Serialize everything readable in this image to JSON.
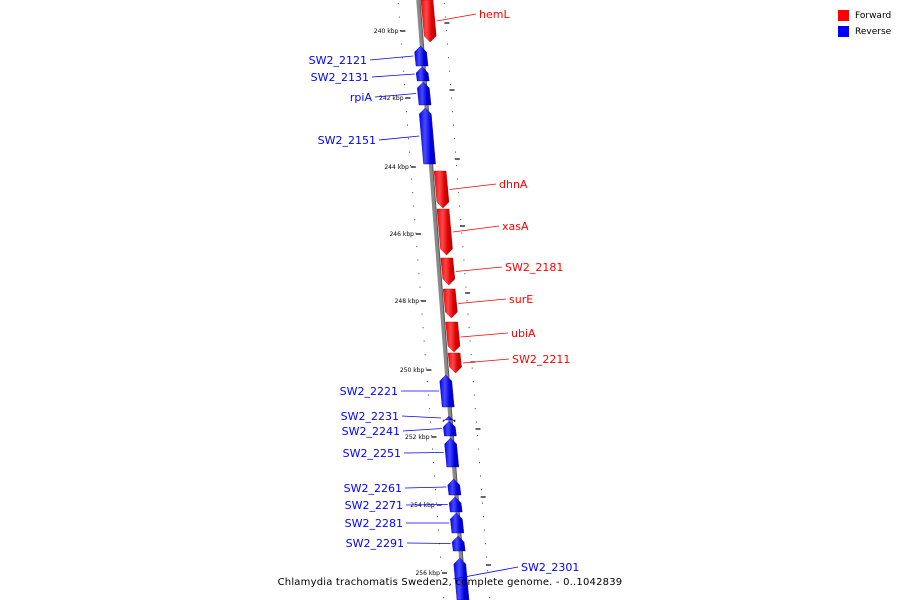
{
  "legend": {
    "forward": {
      "label": "Forward",
      "color": "#ff0000"
    },
    "reverse": {
      "label": "Reverse",
      "color": "#0000ff"
    }
  },
  "caption": "Chlamydia trachomatis Sweden2, complete genome. - 0..1042839",
  "ticks": [
    {
      "label": "240 kbp"
    },
    {
      "label": "242 kbp"
    },
    {
      "label": "244 kbp"
    },
    {
      "label": "246 kbp"
    },
    {
      "label": "248 kbp"
    },
    {
      "label": "250 kbp"
    },
    {
      "label": "252 kbp"
    },
    {
      "label": "254 kbp"
    },
    {
      "label": "256 kbp"
    }
  ],
  "genes": [
    {
      "name": "hemL",
      "strand": "forward"
    },
    {
      "name": "SW2_2121",
      "strand": "reverse"
    },
    {
      "name": "SW2_2131",
      "strand": "reverse"
    },
    {
      "name": "rpiA",
      "strand": "reverse"
    },
    {
      "name": "SW2_2151",
      "strand": "reverse"
    },
    {
      "name": "dhnA",
      "strand": "forward"
    },
    {
      "name": "xasA",
      "strand": "forward"
    },
    {
      "name": "SW2_2181",
      "strand": "forward"
    },
    {
      "name": "surE",
      "strand": "forward"
    },
    {
      "name": "ubiA",
      "strand": "forward"
    },
    {
      "name": "SW2_2211",
      "strand": "forward"
    },
    {
      "name": "SW2_2221",
      "strand": "reverse"
    },
    {
      "name": "SW2_2231",
      "strand": "reverse"
    },
    {
      "name": "SW2_2241",
      "strand": "reverse"
    },
    {
      "name": "SW2_2251",
      "strand": "reverse"
    },
    {
      "name": "SW2_2261",
      "strand": "reverse"
    },
    {
      "name": "SW2_2271",
      "strand": "reverse"
    },
    {
      "name": "SW2_2281",
      "strand": "reverse"
    },
    {
      "name": "SW2_2291",
      "strand": "reverse"
    },
    {
      "name": "SW2_2301",
      "strand": "reverse"
    }
  ]
}
